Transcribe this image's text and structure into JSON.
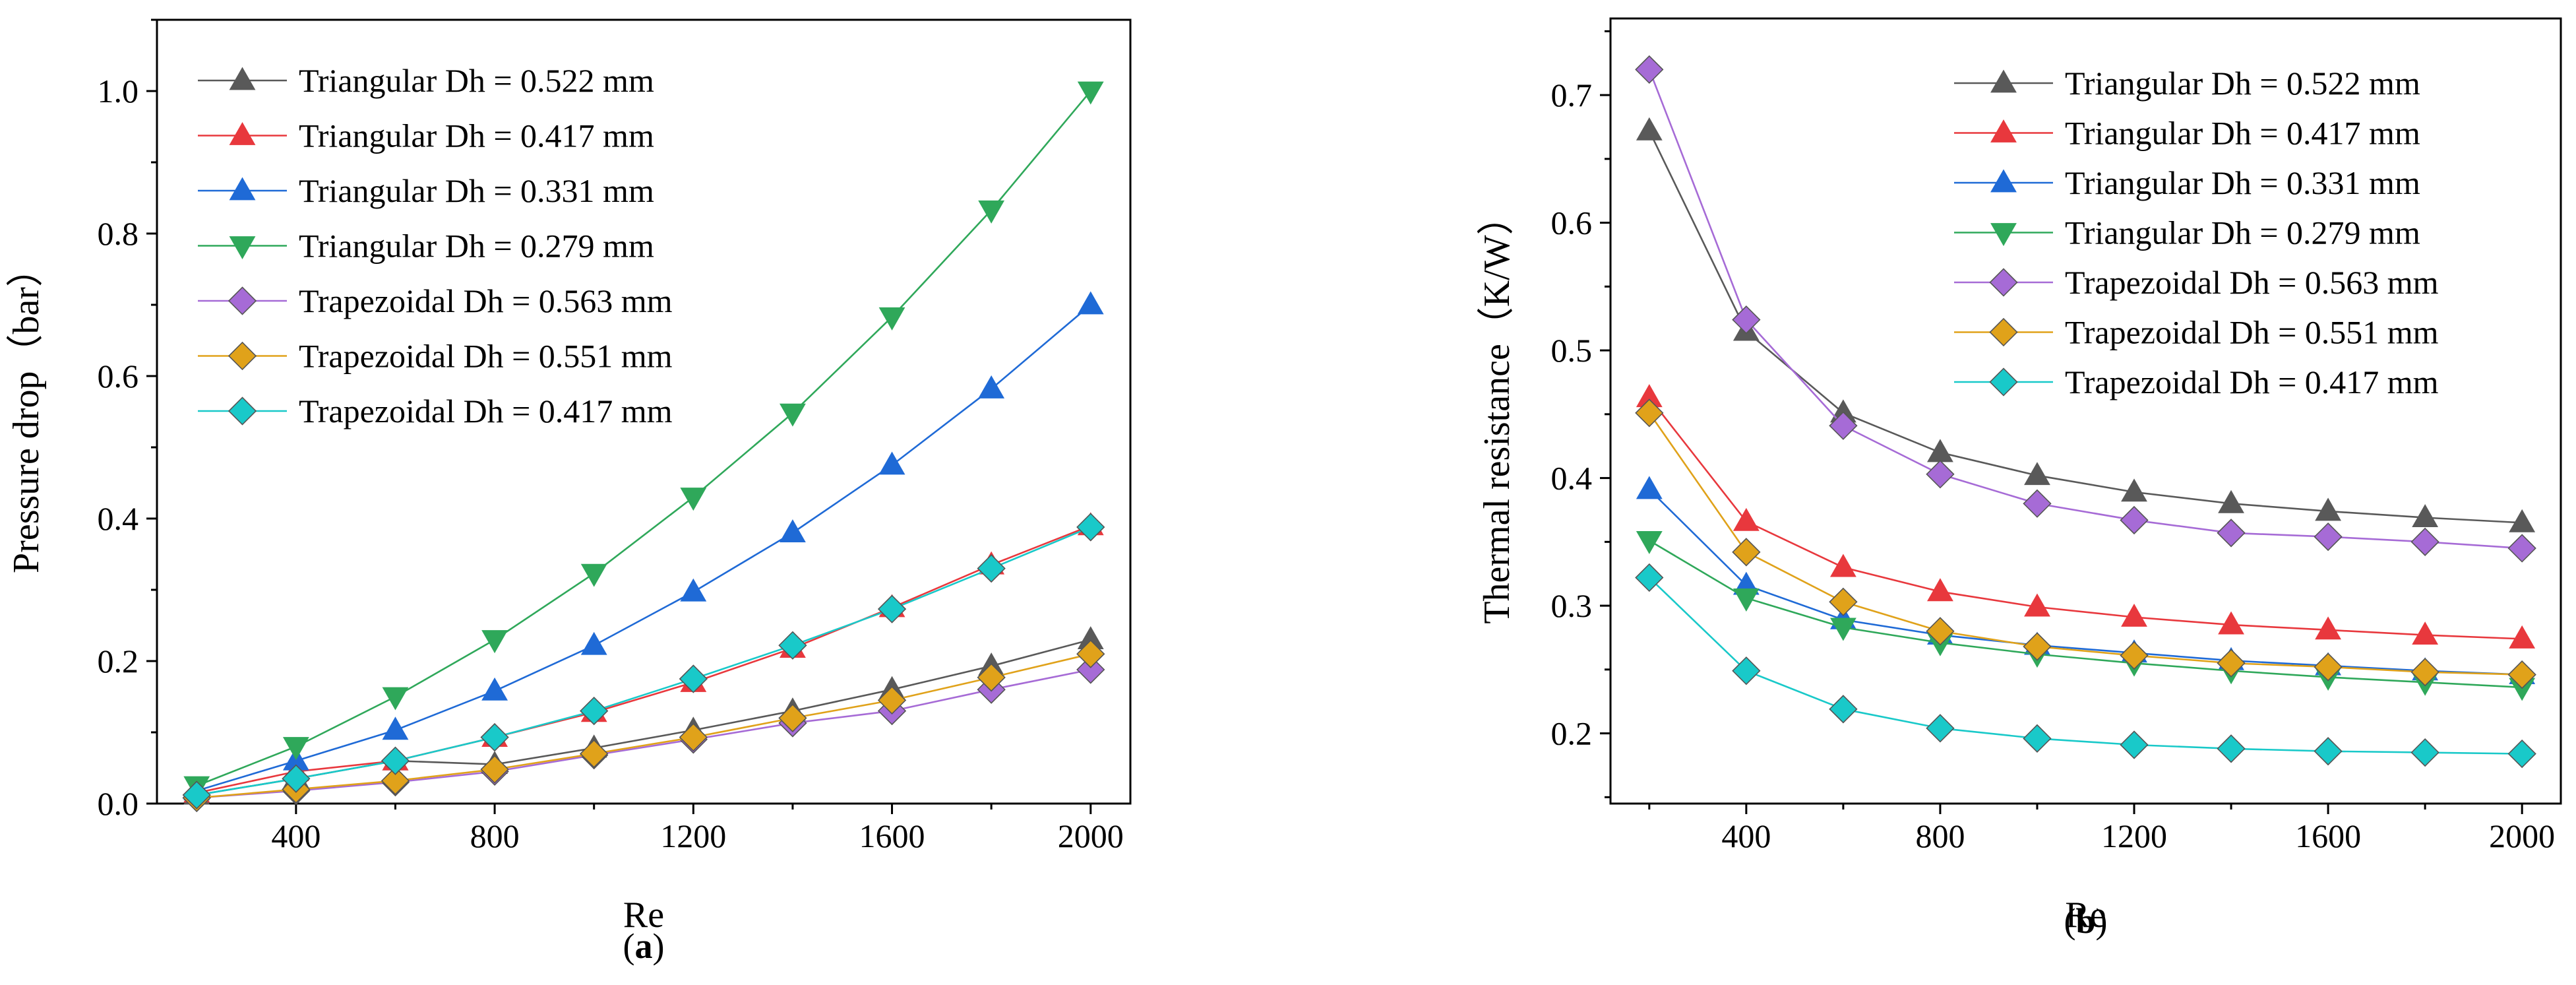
{
  "chart_data": [
    {
      "type": "line",
      "panel_label": "(a)",
      "panel_label_parts": {
        "open": "(",
        "letter": "a",
        "close": ")"
      },
      "xlabel": "Re",
      "ylabel": "Pressure drop（bar）",
      "xlim": [
        120,
        2080
      ],
      "ylim": [
        0.0,
        1.1
      ],
      "x_ticks": [
        400,
        800,
        1200,
        1600,
        2000
      ],
      "x_tick_labels": [
        "400",
        "800",
        "1200",
        "1600",
        "2000"
      ],
      "y_ticks": [
        0.0,
        0.2,
        0.4,
        0.6,
        0.8,
        1.0
      ],
      "y_tick_labels": [
        "0.0",
        "0.2",
        "0.4",
        "0.6",
        "0.8",
        "1.0"
      ],
      "legend_position": "top-left",
      "x": [
        200,
        400,
        600,
        800,
        1000,
        1200,
        1400,
        1600,
        1800,
        2000
      ],
      "series": [
        {
          "name": "Triangular Dh = 0.522 mm",
          "color": "#595959",
          "marker": "triangle-up",
          "values": [
            0.012,
            0.035,
            0.06,
            0.055,
            0.078,
            0.103,
            0.13,
            0.16,
            0.193,
            0.23
          ]
        },
        {
          "name": "Triangular Dh = 0.417 mm",
          "color": "#e8383d",
          "marker": "triangle-up",
          "values": [
            0.015,
            0.045,
            0.06,
            0.093,
            0.128,
            0.17,
            0.218,
            0.275,
            0.335,
            0.39
          ]
        },
        {
          "name": "Triangular Dh = 0.331 mm",
          "color": "#1f6ad6",
          "marker": "triangle-up",
          "values": [
            0.018,
            0.06,
            0.103,
            0.158,
            0.222,
            0.297,
            0.38,
            0.475,
            0.582,
            0.7
          ]
        },
        {
          "name": "Triangular Dh = 0.279 mm",
          "color": "#2fa85a",
          "marker": "triangle-down",
          "values": [
            0.025,
            0.08,
            0.15,
            0.23,
            0.323,
            0.43,
            0.548,
            0.683,
            0.833,
            1.0
          ]
        },
        {
          "name": "Trapezoidal Dh = 0.563 mm",
          "color": "#a66bd6",
          "marker": "diamond",
          "values": [
            0.008,
            0.018,
            0.03,
            0.045,
            0.068,
            0.09,
            0.113,
            0.13,
            0.16,
            0.188
          ]
        },
        {
          "name": "Trapezoidal Dh = 0.551 mm",
          "color": "#e0a21a",
          "marker": "diamond",
          "values": [
            0.008,
            0.02,
            0.032,
            0.048,
            0.07,
            0.093,
            0.12,
            0.145,
            0.177,
            0.21
          ]
        },
        {
          "name": "Trapezoidal Dh = 0.417 mm",
          "color": "#19c9c9",
          "marker": "diamond",
          "values": [
            0.012,
            0.035,
            0.06,
            0.093,
            0.13,
            0.175,
            0.222,
            0.273,
            0.33,
            0.388
          ]
        }
      ]
    },
    {
      "type": "line",
      "panel_label": "(b)",
      "panel_label_parts": {
        "open": "(",
        "letter": "b",
        "close": ")"
      },
      "xlabel": "Re",
      "ylabel": "Thermal resistance（K/W）",
      "xlim": [
        120,
        2080
      ],
      "ylim": [
        0.145,
        0.76
      ],
      "x_ticks": [
        400,
        800,
        1200,
        1600,
        2000
      ],
      "x_tick_labels": [
        "400",
        "800",
        "1200",
        "1600",
        "2000"
      ],
      "y_ticks": [
        0.2,
        0.3,
        0.4,
        0.5,
        0.6,
        0.7
      ],
      "y_tick_labels": [
        "0.2",
        "0.3",
        "0.4",
        "0.5",
        "0.6",
        "0.7"
      ],
      "legend_position": "top-right",
      "x": [
        200,
        400,
        600,
        800,
        1000,
        1200,
        1400,
        1600,
        1800,
        2000
      ],
      "series": [
        {
          "name": "Triangular Dh = 0.522 mm",
          "color": "#595959",
          "marker": "triangle-up",
          "values": [
            0.672,
            0.515,
            0.451,
            0.42,
            0.402,
            0.389,
            0.38,
            0.374,
            0.369,
            0.365
          ]
        },
        {
          "name": "Triangular Dh = 0.417 mm",
          "color": "#e8383d",
          "marker": "triangle-up",
          "values": [
            0.463,
            0.366,
            0.33,
            0.311,
            0.299,
            0.291,
            0.285,
            0.281,
            0.277,
            0.274
          ]
        },
        {
          "name": "Triangular Dh = 0.331 mm",
          "color": "#1f6ad6",
          "marker": "triangle-up",
          "values": [
            0.391,
            0.316,
            0.289,
            0.277,
            0.269,
            0.263,
            0.257,
            0.253,
            0.249,
            0.246
          ]
        },
        {
          "name": "Triangular Dh = 0.279 mm",
          "color": "#2fa85a",
          "marker": "triangle-down",
          "values": [
            0.351,
            0.306,
            0.283,
            0.271,
            0.262,
            0.255,
            0.249,
            0.244,
            0.24,
            0.236
          ]
        },
        {
          "name": "Trapezoidal Dh = 0.563 mm",
          "color": "#a66bd6",
          "marker": "diamond",
          "values": [
            0.72,
            0.524,
            0.441,
            0.403,
            0.38,
            0.367,
            0.357,
            0.354,
            0.35,
            0.345
          ]
        },
        {
          "name": "Trapezoidal Dh = 0.551 mm",
          "color": "#e0a21a",
          "marker": "diamond",
          "values": [
            0.451,
            0.342,
            0.303,
            0.28,
            0.268,
            0.261,
            0.255,
            0.252,
            0.248,
            0.246
          ]
        },
        {
          "name": "Trapezoidal Dh = 0.417 mm",
          "color": "#19c9c9",
          "marker": "diamond",
          "values": [
            0.322,
            0.249,
            0.219,
            0.204,
            0.196,
            0.191,
            0.188,
            0.186,
            0.185,
            0.184
          ]
        }
      ]
    }
  ]
}
